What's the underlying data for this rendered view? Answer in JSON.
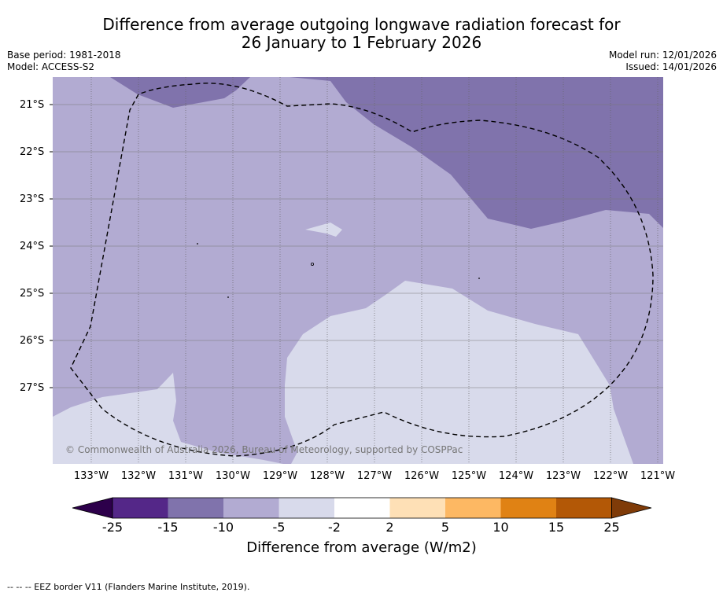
{
  "title_line1": "Difference from average outgoing longwave radiation forecast for",
  "title_line2": "26 January to 1 February 2026",
  "base_period": "Base period: 1981-2018",
  "model": "Model: ACCESS-S2",
  "model_run": "Model run: 12/01/2026",
  "issued": "Issued: 14/01/2026",
  "latitudes": [
    "21°S",
    "22°S",
    "23°S",
    "24°S",
    "25°S",
    "26°S",
    "27°S"
  ],
  "longitudes": [
    "133°W",
    "132°W",
    "131°W",
    "130°W",
    "129°W",
    "128°W",
    "127°W",
    "126°W",
    "125°W",
    "124°W",
    "123°W",
    "122°W",
    "121°W"
  ],
  "copyright": "© Commonwealth of Australia 2026, Bureau of Meteorology, supported by COSPPac",
  "colorbar": {
    "labels": [
      "-25",
      "-15",
      "-10",
      "-5",
      "-2",
      "2",
      "5",
      "10",
      "15",
      "25"
    ],
    "colors": [
      "#2d004b",
      "#542788",
      "#8073ac",
      "#b2abd2",
      "#d8daeb",
      "#ffffff",
      "#fee0b6",
      "#fdb863",
      "#e08214",
      "#b35806",
      "#7f3b08"
    ],
    "title": "Difference from average (W/m2)"
  },
  "footnote": "--  --  -- EEZ border V11 (Flanders Marine Institute, 2019)."
}
